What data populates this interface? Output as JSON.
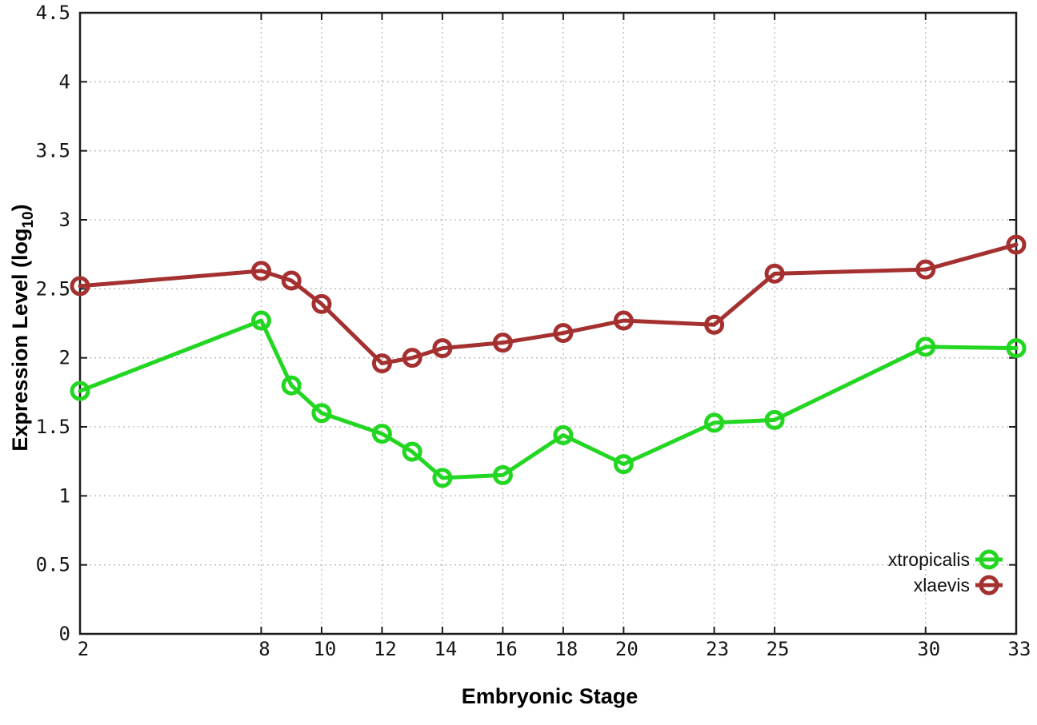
{
  "chart_data": {
    "type": "line",
    "title": "",
    "xlabel": "Embryonic Stage",
    "ylabel": "Expression Level (log10)",
    "ylabel_parts": {
      "main": "Expression Level (log",
      "sub": "10",
      "close": ")"
    },
    "x": [
      2,
      8,
      9,
      10,
      12,
      13,
      14,
      16,
      18,
      20,
      23,
      25,
      30,
      33
    ],
    "series": [
      {
        "name": "xtropicalis",
        "color": "#22d622",
        "marker": "open-circle",
        "values": [
          1.76,
          2.27,
          1.8,
          1.6,
          1.45,
          1.32,
          1.13,
          1.15,
          1.44,
          1.23,
          1.53,
          1.55,
          2.08,
          2.07
        ]
      },
      {
        "name": "xlaevis",
        "color": "#a43030",
        "marker": "open-circle",
        "values": [
          2.52,
          2.63,
          2.56,
          2.39,
          1.96,
          2.0,
          2.07,
          2.11,
          2.18,
          2.27,
          2.24,
          2.61,
          2.64,
          2.82
        ]
      }
    ],
    "xlim": [
      2,
      33
    ],
    "ylim": [
      0,
      4.5
    ],
    "x_tick_values": [
      2,
      8,
      10,
      12,
      14,
      16,
      18,
      20,
      23,
      25,
      30,
      33
    ],
    "x_tick_labels": [
      "2",
      "8",
      "10",
      "12",
      "14",
      "16",
      "18",
      "20",
      "23",
      "25",
      "30",
      "33"
    ],
    "y_tick_values": [
      0,
      0.5,
      1,
      1.5,
      2,
      2.5,
      3,
      3.5,
      4,
      4.5
    ],
    "y_tick_labels": [
      "0",
      "0.5",
      "1",
      "1.5",
      "2",
      "2.5",
      "3",
      "3.5",
      "4",
      "4.5"
    ],
    "grid": true,
    "legend_position": "bottom-right"
  },
  "colors": {
    "axis": "#1c1c1c",
    "grid": "#b8b8b8",
    "background": "#ffffff"
  }
}
